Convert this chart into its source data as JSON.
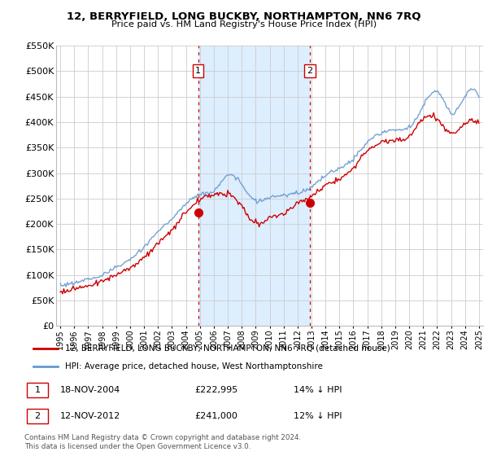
{
  "title": "12, BERRYFIELD, LONG BUCKBY, NORTHAMPTON, NN6 7RQ",
  "subtitle": "Price paid vs. HM Land Registry's House Price Index (HPI)",
  "legend_line1": "12, BERRYFIELD, LONG BUCKBY, NORTHAMPTON, NN6 7RQ (detached house)",
  "legend_line2": "HPI: Average price, detached house, West Northamptonshire",
  "table_row1_num": "1",
  "table_row1_date": "18-NOV-2004",
  "table_row1_price": "£222,995",
  "table_row1_hpi": "14% ↓ HPI",
  "table_row2_num": "2",
  "table_row2_date": "12-NOV-2012",
  "table_row2_price": "£241,000",
  "table_row2_hpi": "12% ↓ HPI",
  "footer": "Contains HM Land Registry data © Crown copyright and database right 2024.\nThis data is licensed under the Open Government Licence v3.0.",
  "ylim": [
    0,
    550000
  ],
  "sale_color": "#cc0000",
  "hpi_color": "#6699cc",
  "shade_color": "#ddeeff",
  "vline_color": "#cc0000",
  "background_color": "#ffffff",
  "sale1_x": 2004.88,
  "sale1_y": 222995,
  "sale2_x": 2012.87,
  "sale2_y": 241000,
  "xticks": [
    1995,
    1996,
    1997,
    1998,
    1999,
    2000,
    2001,
    2002,
    2003,
    2004,
    2005,
    2006,
    2007,
    2008,
    2009,
    2010,
    2011,
    2012,
    2013,
    2014,
    2015,
    2016,
    2017,
    2018,
    2019,
    2020,
    2021,
    2022,
    2023,
    2024,
    2025
  ],
  "yticks": [
    0,
    50000,
    100000,
    150000,
    200000,
    250000,
    300000,
    350000,
    400000,
    450000,
    500000,
    550000
  ]
}
